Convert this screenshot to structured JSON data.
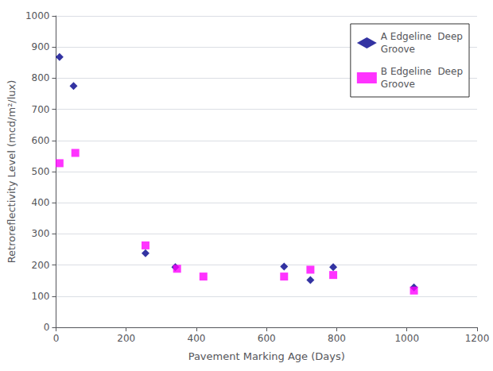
{
  "chart_data": {
    "type": "scatter",
    "xlabel": "Pavement Marking Age (Days)",
    "ylabel": "Retroreflectivity Level (mcd/m²/lux)",
    "series": [
      {
        "name": "A Edgeline  Deep\nGroove",
        "color": "#00008B",
        "marker": "diamond",
        "x": [
          10,
          50,
          255,
          340,
          650,
          725,
          790,
          1020
        ],
        "values": [
          868,
          775,
          238,
          193,
          195,
          152,
          193,
          128
        ]
      },
      {
        "name": "B Edgeline  Deep\nGroove",
        "color": "#FF00FF",
        "marker": "square",
        "x": [
          10,
          55,
          255,
          345,
          420,
          650,
          725,
          790,
          1020
        ],
        "values": [
          527,
          560,
          263,
          188,
          163,
          163,
          185,
          168,
          118
        ]
      }
    ],
    "xlim": [
      0,
      1200
    ],
    "ylim": [
      0,
      1000
    ],
    "xticks": [
      0,
      200,
      400,
      600,
      800,
      1000,
      1200
    ],
    "yticks": [
      0,
      100,
      200,
      300,
      400,
      500,
      600,
      700,
      800,
      900,
      1000
    ],
    "grid": true,
    "legend": "upper right"
  }
}
